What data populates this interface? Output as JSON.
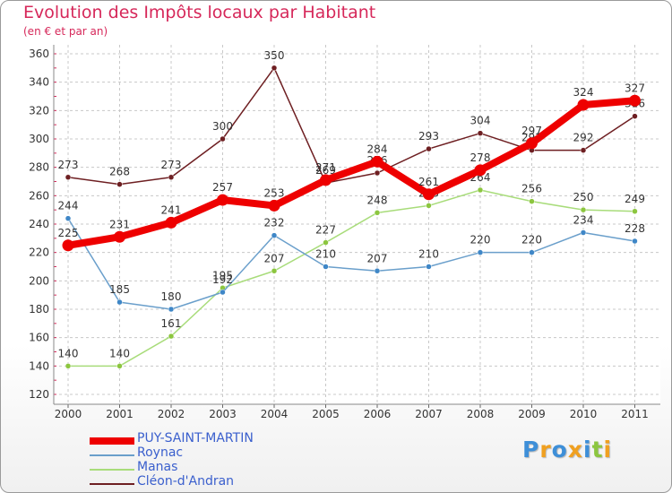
{
  "title": "Evolution des Impôts locaux par Habitant",
  "subtitle": "(en € et par an)",
  "logo": {
    "text": "Proxiti",
    "letters": [
      {
        "ch": "P",
        "color": "#3e8fd8"
      },
      {
        "ch": "r",
        "color": "#f0a020"
      },
      {
        "ch": "o",
        "color": "#3e8fd8"
      },
      {
        "ch": "x",
        "color": "#f0a020"
      },
      {
        "ch": "i",
        "color": "#3e8fd8"
      },
      {
        "ch": "t",
        "color": "#8cc63f"
      },
      {
        "ch": "i",
        "color": "#f0a020"
      }
    ]
  },
  "chart_data": {
    "type": "line",
    "title": "Evolution des Impôts locaux par Habitant",
    "subtitle": "(en € et par an)",
    "x": [
      "2000",
      "2001",
      "2002",
      "2003",
      "2004",
      "2005",
      "2006",
      "2007",
      "2008",
      "2009",
      "2010",
      "2011"
    ],
    "ylim": [
      120,
      360
    ],
    "yticks": [
      120,
      140,
      160,
      180,
      200,
      220,
      240,
      260,
      280,
      300,
      320,
      340,
      360
    ],
    "grid": true,
    "legend": "bottom-left",
    "series": [
      {
        "name": "Cléon-d'Andran",
        "color": "#6e1f22",
        "marker": "#6e1f22",
        "values": [
          273,
          268,
          273,
          300,
          350,
          269,
          276,
          293,
          304,
          292,
          292,
          316
        ],
        "labels": [
          "273",
          "268",
          "273",
          "300",
          "350",
          "269",
          "276",
          "293",
          "304",
          "292",
          "292",
          "316"
        ]
      },
      {
        "name": "Manas",
        "color": "#a8dc7a",
        "marker": "#8cc63f",
        "values": [
          140,
          140,
          161,
          195,
          207,
          227,
          248,
          253,
          264,
          256,
          250,
          249
        ],
        "labels": [
          "140",
          "140",
          "161",
          "195",
          "207",
          "227",
          "248",
          "253",
          "264",
          "256",
          "250",
          "249"
        ]
      },
      {
        "name": "Roynac",
        "color": "#6a9fcb",
        "marker": "#3f87c7",
        "values": [
          244,
          185,
          180,
          192,
          232,
          210,
          207,
          210,
          220,
          220,
          234,
          228
        ],
        "labels": [
          "244",
          "185",
          "180",
          "192",
          "232",
          "210",
          "207",
          "210",
          "220",
          "220",
          "234",
          "228"
        ]
      },
      {
        "name": "PUY-SAINT-MARTIN",
        "color": "#ee0000",
        "marker": "#ee0000",
        "thick": true,
        "values": [
          225,
          231,
          241,
          257,
          253,
          271,
          284,
          261,
          278,
          297,
          324,
          327
        ],
        "labels": [
          "225",
          "231",
          "241",
          "257",
          "253",
          "271",
          "284",
          "261",
          "278",
          "297",
          "324",
          "327"
        ]
      }
    ],
    "legend_order": [
      "PUY-SAINT-MARTIN",
      "Roynac",
      "Manas",
      "Cléon-d'Andran"
    ]
  }
}
